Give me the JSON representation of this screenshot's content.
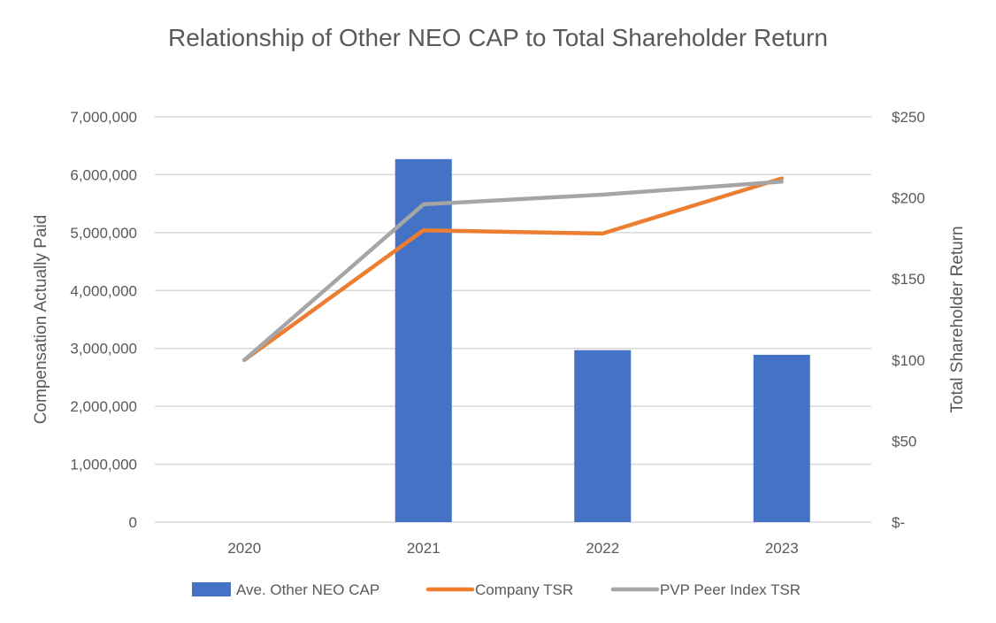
{
  "chart_data": {
    "type": "bar",
    "title": "Relationship of Other NEO CAP to Total Shareholder Return",
    "categories": [
      "2020",
      "2021",
      "2022",
      "2023"
    ],
    "ylabel": "Compensation Actually Paid",
    "y2label": "Total Shareholder Return",
    "ylim": [
      0,
      7000000
    ],
    "y2lim": [
      0,
      250
    ],
    "y_ticks": [
      "0",
      "1,000,000",
      "2,000,000",
      "3,000,000",
      "4,000,000",
      "5,000,000",
      "6,000,000",
      "7,000,000"
    ],
    "y2_ticks": [
      "$-",
      "$50",
      "$100",
      "$150",
      "$200",
      "$250"
    ],
    "grid": true,
    "legend_position": "bottom",
    "series": [
      {
        "name": "Ave. Other NEO CAP",
        "type": "bar",
        "axis": "left",
        "color": "#4472C4",
        "values": [
          0,
          6270000,
          2970000,
          2890000
        ]
      },
      {
        "name": "Company TSR",
        "type": "line",
        "axis": "right",
        "color": "#ED7D31",
        "values": [
          100,
          180,
          178,
          212
        ]
      },
      {
        "name": "PVP Peer Index TSR",
        "type": "line",
        "axis": "right",
        "color": "#A5A5A5",
        "values": [
          100,
          196,
          202,
          210
        ]
      }
    ]
  }
}
